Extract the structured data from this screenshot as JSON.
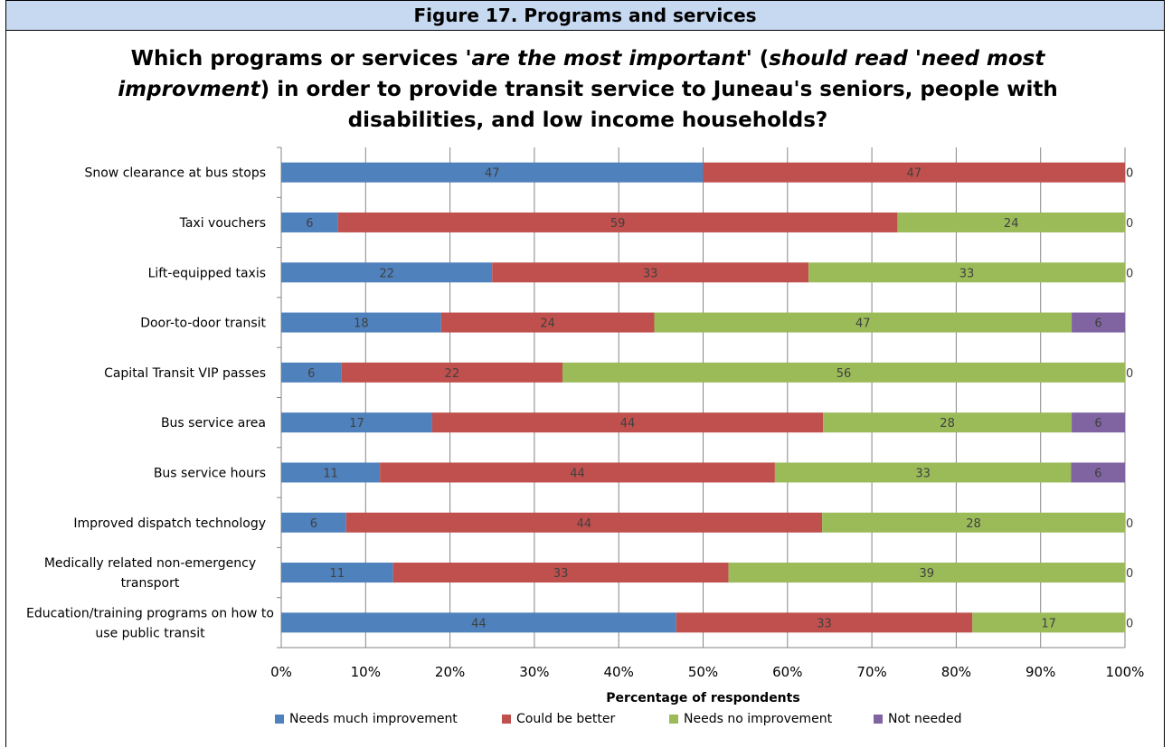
{
  "figure_header": "Figure 17. Programs and services",
  "title": {
    "part1": "Which programs or services '",
    "part2": "are the most important",
    "part3": "' (",
    "part4": "should read 'need most improvment",
    "part5": ") in order to provide transit service to Juneau's seniors, people with disabilities, and low income households?"
  },
  "chart_data": {
    "type": "bar",
    "orientation": "horizontal",
    "stacked": "100%",
    "categories": [
      "Snow clearance at bus stops",
      "Taxi vouchers",
      "Lift-equipped taxis",
      "Door-to-door transit",
      "Capital Transit VIP passes",
      "Bus service area",
      "Bus service hours",
      "Improved dispatch technology",
      "Medically related non-emergency transport",
      "Education/training programs on how to use public transit"
    ],
    "series": [
      {
        "name": "Needs much improvement",
        "color": "#4f81bd",
        "values": [
          47,
          6,
          22,
          18,
          6,
          17,
          11,
          6,
          11,
          44
        ]
      },
      {
        "name": "Could be better",
        "color": "#c0504d",
        "values": [
          47,
          59,
          33,
          24,
          22,
          44,
          44,
          44,
          33,
          33
        ]
      },
      {
        "name": "Needs no improvement",
        "color": "#9bbb59",
        "values": [
          0,
          24,
          33,
          47,
          56,
          28,
          33,
          28,
          39,
          17
        ]
      },
      {
        "name": "Not needed",
        "color": "#8064a2",
        "values": [
          0,
          0,
          0,
          6,
          0,
          6,
          6,
          0,
          0,
          0
        ]
      }
    ],
    "xlabel": "Percentage of respondents",
    "xticks": [
      "0%",
      "10%",
      "20%",
      "30%",
      "40%",
      "50%",
      "60%",
      "70%",
      "80%",
      "90%",
      "100%"
    ],
    "xlim": [
      0,
      100
    ],
    "grid": true,
    "legend_position": "bottom"
  }
}
